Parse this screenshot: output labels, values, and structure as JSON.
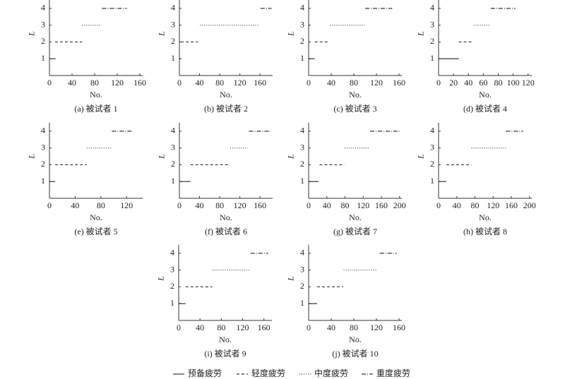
{
  "legend": [
    {
      "name": "预备疲劳",
      "dash": "none"
    },
    {
      "name": "轻度疲劳",
      "dash": "4 3"
    },
    {
      "name": "中度疲劳",
      "dash": "1 2"
    },
    {
      "name": "重度疲劳",
      "dash": "6 2 1 2"
    }
  ],
  "chart_data": [
    {
      "type": "segments",
      "caption": "(a) 被试者 1",
      "xlabel": "No.",
      "ylabel": "L",
      "xlim": [
        0,
        165
      ],
      "xticks": [
        0,
        40,
        80,
        120,
        160
      ],
      "ylim": [
        0,
        4.5
      ],
      "yticks": [
        1,
        2,
        3,
        4
      ],
      "color": "#333",
      "series": [
        {
          "x": [
            0,
            11
          ],
          "values": [
            1,
            1
          ]
        },
        {
          "x": [
            10,
            58
          ],
          "values": [
            2,
            2
          ]
        },
        {
          "x": [
            58,
            92
          ],
          "values": [
            3,
            3
          ]
        },
        {
          "x": [
            93,
            137
          ],
          "values": [
            4,
            4
          ]
        }
      ]
    },
    {
      "type": "segments",
      "caption": "(b) 被试者 2",
      "xlabel": "No.",
      "ylabel": "L",
      "xlim": [
        0,
        185
      ],
      "xticks": [
        0,
        40,
        80,
        120,
        160
      ],
      "ylim": [
        0,
        4.5
      ],
      "yticks": [
        1,
        2,
        3,
        4
      ],
      "color": "#333",
      "series": [
        {
          "x": [
            0,
            3
          ],
          "values": [
            1,
            1
          ]
        },
        {
          "x": [
            3,
            37
          ],
          "values": [
            2,
            2
          ]
        },
        {
          "x": [
            41,
            159
          ],
          "values": [
            3,
            3
          ]
        },
        {
          "x": [
            161,
            183
          ],
          "values": [
            4,
            4
          ]
        }
      ]
    },
    {
      "type": "segments",
      "caption": "(c) 被试者 3",
      "xlabel": "No.",
      "ylabel": "L",
      "xlim": [
        0,
        165
      ],
      "xticks": [
        0,
        40,
        80,
        120,
        160
      ],
      "ylim": [
        0,
        4.5
      ],
      "yticks": [
        1,
        2,
        3,
        4
      ],
      "color": "#333",
      "series": [
        {
          "x": [
            0,
            11
          ],
          "values": [
            1,
            1
          ]
        },
        {
          "x": [
            11,
            37
          ],
          "values": [
            2,
            2
          ]
        },
        {
          "x": [
            38,
            99
          ],
          "values": [
            3,
            3
          ]
        },
        {
          "x": [
            100,
            148
          ],
          "values": [
            4,
            4
          ]
        }
      ]
    },
    {
      "type": "segments",
      "caption": "(d) 被试者 4",
      "xlabel": "No.",
      "ylabel": "L",
      "xlim": [
        0,
        125
      ],
      "xticks": [
        0,
        20,
        40,
        60,
        80,
        100,
        120
      ],
      "ylim": [
        0,
        4.5
      ],
      "yticks": [
        1,
        2,
        3,
        4
      ],
      "color": "#333",
      "series": [
        {
          "x": [
            0,
            27
          ],
          "values": [
            1,
            1
          ]
        },
        {
          "x": [
            27,
            46
          ],
          "values": [
            2,
            2
          ]
        },
        {
          "x": [
            47,
            68
          ],
          "values": [
            3,
            3
          ]
        },
        {
          "x": [
            70,
            103
          ],
          "values": [
            4,
            4
          ]
        }
      ]
    },
    {
      "type": "segments",
      "caption": "(e) 被试者 5",
      "xlabel": "No.",
      "ylabel": "L",
      "xlim": [
        0,
        145
      ],
      "xticks": [
        0,
        40,
        80,
        120
      ],
      "ylim": [
        0,
        4.5
      ],
      "yticks": [
        1,
        2,
        3,
        4
      ],
      "color": "#333",
      "series": [
        {
          "x": [
            0,
            9
          ],
          "values": [
            1,
            1
          ]
        },
        {
          "x": [
            9,
            58
          ],
          "values": [
            2,
            2
          ]
        },
        {
          "x": [
            58,
            97
          ],
          "values": [
            3,
            3
          ]
        },
        {
          "x": [
            97,
            130
          ],
          "values": [
            4,
            4
          ]
        }
      ]
    },
    {
      "type": "segments",
      "caption": "(f) 被试者 6",
      "xlabel": "No.",
      "ylabel": "L",
      "xlim": [
        0,
        185
      ],
      "xticks": [
        0,
        40,
        80,
        120,
        160
      ],
      "ylim": [
        0,
        4.5
      ],
      "yticks": [
        1,
        2,
        3,
        4
      ],
      "color": "#333",
      "series": [
        {
          "x": [
            0,
            22
          ],
          "values": [
            1,
            1
          ]
        },
        {
          "x": [
            22,
            97
          ],
          "values": [
            2,
            2
          ]
        },
        {
          "x": [
            101,
            135
          ],
          "values": [
            3,
            3
          ]
        },
        {
          "x": [
            138,
            181
          ],
          "values": [
            4,
            4
          ]
        }
      ]
    },
    {
      "type": "segments",
      "caption": "(g) 被试者 7",
      "xlabel": "No.",
      "ylabel": "L",
      "xlim": [
        0,
        205
      ],
      "xticks": [
        0,
        40,
        80,
        120,
        160,
        200
      ],
      "ylim": [
        0,
        4.5
      ],
      "yticks": [
        1,
        2,
        3,
        4
      ],
      "color": "#333",
      "series": [
        {
          "x": [
            0,
            22
          ],
          "values": [
            1,
            1
          ]
        },
        {
          "x": [
            24,
            79
          ],
          "values": [
            2,
            2
          ]
        },
        {
          "x": [
            79,
            133
          ],
          "values": [
            3,
            3
          ]
        },
        {
          "x": [
            135,
            200
          ],
          "values": [
            4,
            4
          ]
        }
      ]
    },
    {
      "type": "segments",
      "caption": "(h) 被试者 8",
      "xlabel": "No.",
      "ylabel": "L",
      "xlim": [
        0,
        205
      ],
      "xticks": [
        0,
        40,
        80,
        120,
        160,
        200
      ],
      "ylim": [
        0,
        4.5
      ],
      "yticks": [
        1,
        2,
        3,
        4
      ],
      "color": "#333",
      "series": [
        {
          "x": [
            0,
            17
          ],
          "values": [
            1,
            1
          ]
        },
        {
          "x": [
            17,
            72
          ],
          "values": [
            2,
            2
          ]
        },
        {
          "x": [
            72,
            148
          ],
          "values": [
            3,
            3
          ]
        },
        {
          "x": [
            148,
            186
          ],
          "values": [
            4,
            4
          ]
        }
      ]
    },
    {
      "type": "segments",
      "caption": "(i) 被试者 9",
      "xlabel": "No.",
      "ylabel": "L",
      "xlim": [
        0,
        175
      ],
      "xticks": [
        0,
        40,
        80,
        120,
        160
      ],
      "ylim": [
        0,
        4.5
      ],
      "yticks": [
        1,
        2,
        3,
        4
      ],
      "color": "#333",
      "series": [
        {
          "x": [
            0,
            13
          ],
          "values": [
            1,
            1
          ]
        },
        {
          "x": [
            13,
            63
          ],
          "values": [
            2,
            2
          ]
        },
        {
          "x": [
            63,
            133
          ],
          "values": [
            3,
            3
          ]
        },
        {
          "x": [
            135,
            168
          ],
          "values": [
            4,
            4
          ]
        }
      ]
    },
    {
      "type": "segments",
      "caption": "(j) 被试者 10",
      "xlabel": "No.",
      "ylabel": "L",
      "xlim": [
        0,
        165
      ],
      "xticks": [
        0,
        40,
        80,
        120,
        160
      ],
      "ylim": [
        0,
        4.5
      ],
      "yticks": [
        1,
        2,
        3,
        4
      ],
      "color": "#333",
      "series": [
        {
          "x": [
            0,
            15
          ],
          "values": [
            1,
            1
          ]
        },
        {
          "x": [
            15,
            61
          ],
          "values": [
            2,
            2
          ]
        },
        {
          "x": [
            62,
            122
          ],
          "values": [
            3,
            3
          ]
        },
        {
          "x": [
            126,
            156
          ],
          "values": [
            4,
            4
          ]
        }
      ]
    }
  ]
}
